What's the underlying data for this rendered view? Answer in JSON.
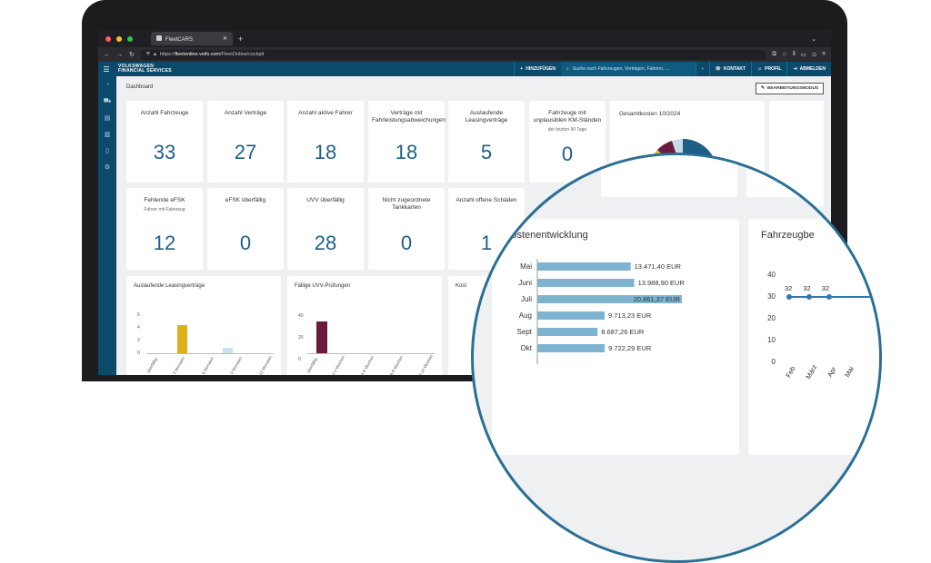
{
  "browser": {
    "tab_title": "FleetCARS",
    "tab_close": "✕",
    "new_tab": "+",
    "url_prefix": "https://",
    "url_host": "fleetonline.vwfs.com",
    "url_path": "/FleetOnline/cockpit"
  },
  "app": {
    "brand_line1": "VOLKSWAGEN",
    "brand_line2": "FINANCIAL SERVICES",
    "add_button": "HINZUFÜGEN",
    "search_placeholder": "Suche nach Fahrzeugen, Verträgen, Fahrern, ...",
    "contact_button": "KONTAKT",
    "profile_button": "PROFIL",
    "logout_button": "ABMELDEN",
    "page_title": "Dashboard",
    "edit_mode_button": "BEARBEITUNGSMODUS"
  },
  "kpis": [
    {
      "label": "Anzahl Fahrzeuge",
      "sub": "",
      "value": "33"
    },
    {
      "label": "Anzahl Verträge",
      "sub": "",
      "value": "27"
    },
    {
      "label": "Anzahl aktive Fahrer",
      "sub": "",
      "value": "18"
    },
    {
      "label": "Verträge mit Fahrleistungsabweichungen",
      "sub": "",
      "value": "18"
    },
    {
      "label": "Auslaufende Leasingverträge",
      "sub": "",
      "value": "5"
    },
    {
      "label": "Fahrzeuge mit unplausiblen KM-Ständen",
      "sub": "der letzten 90 Tage",
      "value": "0"
    },
    {
      "label": "Fehlende eFSK",
      "sub": "Fahrer mit Fahrzeug",
      "value": "12"
    },
    {
      "label": "eFSK überfällig",
      "sub": "",
      "value": "0"
    },
    {
      "label": "UVV überfällig",
      "sub": "",
      "value": "28"
    },
    {
      "label": "Nicht zugeordnete Tankkarten",
      "sub": "",
      "value": "0"
    },
    {
      "label": "Anzahl offene Schäden",
      "sub": "",
      "value": "1"
    }
  ],
  "widgets": {
    "total_costs": "Gesamtkosten 10/2024",
    "leasing_title": "Auslaufende Leasingverträge",
    "uvv_title": "Fällige UVV-Prüfungen",
    "cost_partial": "Kost",
    "leasing_y": [
      "6",
      "4",
      "2",
      "0"
    ],
    "leasing_x": [
      "überfällig",
      "3 Monaten",
      "6 Monaten",
      "9 Monaten",
      "12 Monaten"
    ],
    "uvv_y": [
      "40",
      "20",
      "0"
    ],
    "uvv_x": [
      "überfällig",
      "2-4 Wochen",
      "4-6 Wochen",
      "6-8 Wochen",
      "8-10 Wochen"
    ]
  },
  "zoom": {
    "cost_title": "Kostenentwicklung",
    "fleet_title": "Fahrzeugbe",
    "fleet_y": [
      "40",
      "30",
      "20",
      "10",
      "0"
    ],
    "fleet_points": [
      "32",
      "32",
      "32"
    ],
    "fleet_x": [
      "Feb",
      "März",
      "Apr",
      "Mai"
    ]
  },
  "chart_data": {
    "type": "bar",
    "title": "Kostenentwicklung",
    "categories": [
      "Mai",
      "Juni",
      "Juli",
      "Aug",
      "Sept",
      "Okt"
    ],
    "values": [
      13471.4,
      13988.9,
      20861.37,
      9713.23,
      8687.26,
      9722.29
    ],
    "labels": [
      "13.471,40 EUR",
      "13.988,90 EUR",
      "20.861,37 EUR",
      "9.713,23 EUR",
      "8.687,26 EUR",
      "9.722,29 EUR"
    ],
    "xlim": [
      0,
      21000
    ],
    "color": "#7eb3cf"
  }
}
